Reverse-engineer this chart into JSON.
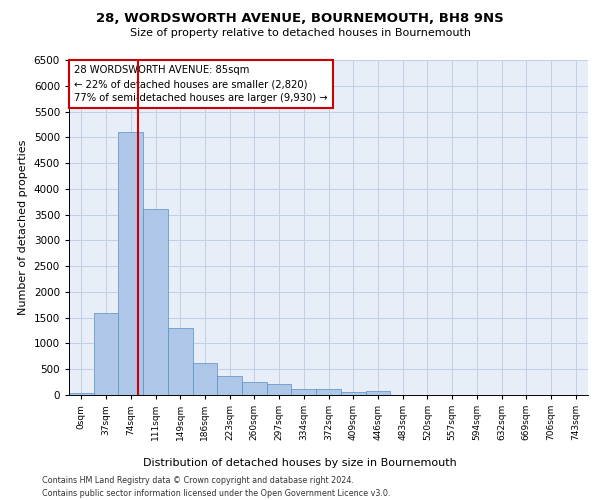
{
  "title1": "28, WORDSWORTH AVENUE, BOURNEMOUTH, BH8 9NS",
  "title2": "Size of property relative to detached houses in Bournemouth",
  "xlabel": "Distribution of detached houses by size in Bournemouth",
  "ylabel": "Number of detached properties",
  "bin_labels": [
    "0sqm",
    "37sqm",
    "74sqm",
    "111sqm",
    "149sqm",
    "186sqm",
    "223sqm",
    "260sqm",
    "297sqm",
    "334sqm",
    "372sqm",
    "409sqm",
    "446sqm",
    "483sqm",
    "520sqm",
    "557sqm",
    "594sqm",
    "632sqm",
    "669sqm",
    "706sqm",
    "743sqm"
  ],
  "bar_heights": [
    30,
    1600,
    5100,
    3600,
    1300,
    620,
    370,
    260,
    210,
    120,
    110,
    60,
    80,
    0,
    0,
    0,
    0,
    0,
    0,
    0,
    0
  ],
  "bar_color": "#aec6e8",
  "bar_edge_color": "#5a8fc0",
  "grid_color": "#c0d0e8",
  "background_color": "#e8eef8",
  "vline_x": 2.3,
  "vline_color": "#cc0000",
  "annotation_text": "28 WORDSWORTH AVENUE: 85sqm\n← 22% of detached houses are smaller (2,820)\n77% of semi-detached houses are larger (9,930) →",
  "annotation_box_color": "#ffffff",
  "annotation_border_color": "#cc0000",
  "ylim": [
    0,
    6500
  ],
  "yticks": [
    0,
    500,
    1000,
    1500,
    2000,
    2500,
    3000,
    3500,
    4000,
    4500,
    5000,
    5500,
    6000,
    6500
  ],
  "footer1": "Contains HM Land Registry data © Crown copyright and database right 2024.",
  "footer2": "Contains public sector information licensed under the Open Government Licence v3.0."
}
